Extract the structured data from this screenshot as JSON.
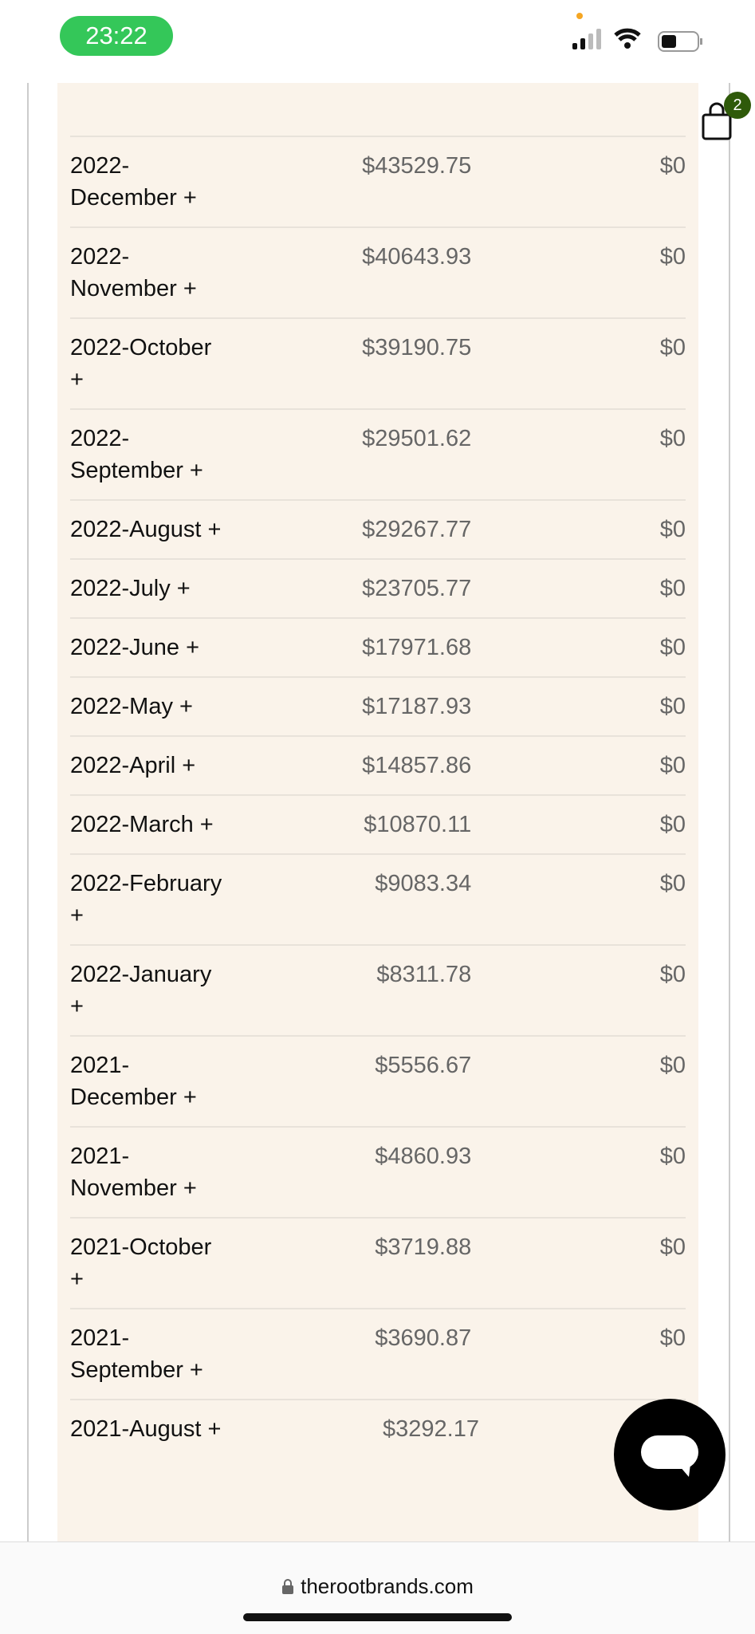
{
  "status": {
    "time": "23:22"
  },
  "cart": {
    "badge": "2"
  },
  "table": {
    "rows": [
      [
        "2022-December +",
        "$43529.75",
        "$0"
      ],
      [
        "2022-November +",
        "$40643.93",
        "$0"
      ],
      [
        "2022-October +",
        "$39190.75",
        "$0"
      ],
      [
        "2022-September +",
        "$29501.62",
        "$0"
      ],
      [
        "2022-August +",
        "$29267.77",
        "$0"
      ],
      [
        "2022-July +",
        "$23705.77",
        "$0"
      ],
      [
        "2022-June +",
        "$17971.68",
        "$0"
      ],
      [
        "2022-May +",
        "$17187.93",
        "$0"
      ],
      [
        "2022-April +",
        "$14857.86",
        "$0"
      ],
      [
        "2022-March +",
        "$10870.11",
        "$0"
      ],
      [
        "2022-February +",
        "$9083.34",
        "$0"
      ],
      [
        "2022-January +",
        "$8311.78",
        "$0"
      ],
      [
        "2021-December +",
        "$5556.67",
        "$0"
      ],
      [
        "2021-November +",
        "$4860.93",
        "$0"
      ],
      [
        "2021-October +",
        "$3719.88",
        "$0"
      ],
      [
        "2021-September +",
        "$3690.87",
        "$0"
      ],
      [
        "2021-August +",
        "$3292.17"
      ]
    ]
  },
  "browser": {
    "url": "therootbrands.com"
  }
}
